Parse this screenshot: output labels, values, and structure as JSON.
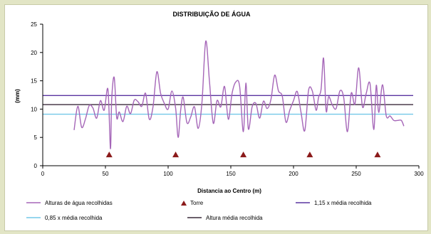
{
  "chart_data": {
    "type": "line",
    "title": "DISTRIBUIÇÃO DE ÁGUA",
    "xlabel": "Distancia ao Centro (m)",
    "ylabel": "(mm)",
    "xlim": [
      0,
      300
    ],
    "ylim": [
      0,
      25
    ],
    "xticks": [
      0,
      50,
      100,
      150,
      200,
      250,
      300
    ],
    "yticks": [
      0,
      5,
      10,
      15,
      20,
      25
    ],
    "grid": false,
    "legend_position": "bottom",
    "series": [
      {
        "name": "Alturas de água recolhidas",
        "color": "#a566b8",
        "x": [
          25,
          28,
          31,
          34,
          37,
          40,
          43,
          46,
          49,
          52,
          54,
          55,
          57,
          59,
          61,
          64,
          67,
          70,
          73,
          76,
          79,
          82,
          85,
          88,
          91,
          94,
          97,
          100,
          103,
          106,
          108,
          110,
          112,
          115,
          118,
          121,
          124,
          127,
          130,
          133,
          136,
          139,
          142,
          145,
          148,
          151,
          154,
          157,
          160,
          162,
          164,
          167,
          170,
          173,
          176,
          179,
          182,
          185,
          188,
          191,
          194,
          197,
          200,
          203,
          206,
          209,
          212,
          215,
          218,
          220,
          222,
          224,
          226,
          228,
          231,
          234,
          237,
          240,
          243,
          246,
          249,
          252,
          255,
          258,
          261,
          264,
          266,
          268,
          271,
          274,
          277,
          280,
          283,
          286,
          288
        ],
        "y": [
          6.3,
          10.5,
          6.8,
          8.2,
          10.6,
          10.2,
          8.4,
          11.5,
          9.8,
          13.5,
          3.0,
          11.8,
          15.6,
          8.5,
          9.5,
          7.8,
          10.5,
          9.2,
          11.6,
          11.3,
          10.5,
          12.8,
          8.2,
          10.5,
          16.6,
          12.8,
          11.0,
          10.0,
          13.2,
          10.1,
          5.0,
          9.8,
          12.1,
          7.6,
          8.6,
          10.4,
          6.6,
          11.2,
          22.0,
          14.8,
          7.5,
          11.5,
          10.4,
          14.0,
          8.2,
          12.8,
          14.8,
          14.1,
          6.0,
          14.6,
          6.5,
          10.4,
          11.0,
          8.4,
          11.4,
          10.1,
          11.7,
          16.0,
          13.2,
          12.3,
          7.7,
          9.8,
          11.5,
          13.1,
          9.4,
          6.2,
          13.3,
          13.2,
          9.8,
          12.1,
          13.5,
          19.0,
          9.7,
          12.2,
          10.7,
          10.1,
          13.2,
          12.1,
          6.0,
          12.8,
          10.9,
          17.3,
          10.4,
          12.8,
          14.5,
          6.4,
          14.2,
          9.4,
          14.3,
          8.8,
          8.8,
          8.0,
          8.0,
          8.0,
          7.0
        ]
      },
      {
        "name": "1,15 x média recolhida",
        "color": "#5a35a0",
        "value": 12.4
      },
      {
        "name": "Altura média recolhida",
        "color": "#3a2a3a",
        "value": 10.8
      },
      {
        "name": "0,85 x média recolhida",
        "color": "#74c8e8",
        "value": 9.1
      },
      {
        "name": "Torre",
        "color": "#8b1a1a",
        "marker": "triangle",
        "x": [
          53,
          106,
          160,
          213,
          267
        ],
        "y": [
          2,
          2,
          2,
          2,
          2
        ]
      }
    ]
  }
}
